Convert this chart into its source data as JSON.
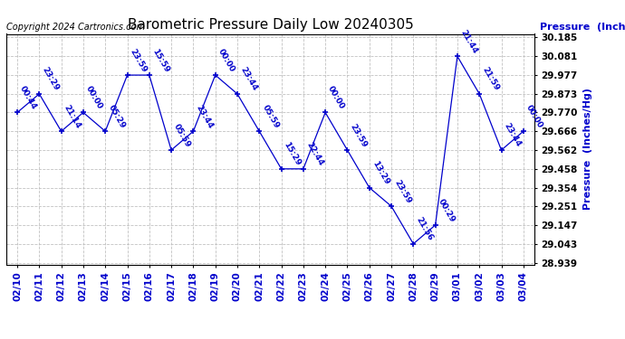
{
  "title": "Barometric Pressure Daily Low 20240305",
  "ylabel": "Pressure  (Inches/Hg)",
  "copyright": "Copyright 2024 Cartronics.com",
  "dates": [
    "02/10",
    "02/11",
    "02/12",
    "02/13",
    "02/14",
    "02/15",
    "02/16",
    "02/17",
    "02/18",
    "02/19",
    "02/20",
    "02/21",
    "02/22",
    "02/23",
    "02/24",
    "02/25",
    "02/26",
    "02/27",
    "02/28",
    "02/29",
    "03/01",
    "03/02",
    "03/03",
    "03/04"
  ],
  "values": [
    29.77,
    29.873,
    29.666,
    29.77,
    29.666,
    29.977,
    29.977,
    29.562,
    29.666,
    29.977,
    29.873,
    29.666,
    29.458,
    29.458,
    29.77,
    29.562,
    29.354,
    29.251,
    29.043,
    29.147,
    30.081,
    29.873,
    29.562,
    29.666
  ],
  "times": [
    "00:44",
    "23:29",
    "21:14",
    "00:00",
    "05:29",
    "23:59",
    "15:59",
    "05:59",
    "23:44",
    "00:00",
    "23:44",
    "05:59",
    "15:29",
    "22:44",
    "00:00",
    "23:59",
    "13:29",
    "23:59",
    "21:56",
    "00:29",
    "21:44",
    "21:59",
    "23:44",
    "00:00"
  ],
  "point_color": "#0000cc",
  "line_color": "#0000cc",
  "text_color": "#0000cc",
  "grid_color": "#bbbbbb",
  "bg_color": "#ffffff",
  "title_fontsize": 11,
  "tick_fontsize": 7.5,
  "copyright_fontsize": 7,
  "ylabel_fontsize": 8,
  "annotation_fontsize": 6.5,
  "ylim_min": 28.939,
  "ylim_max": 30.185,
  "yticks": [
    28.939,
    29.043,
    29.147,
    29.251,
    29.354,
    29.458,
    29.562,
    29.666,
    29.77,
    29.873,
    29.977,
    30.081,
    30.185
  ]
}
